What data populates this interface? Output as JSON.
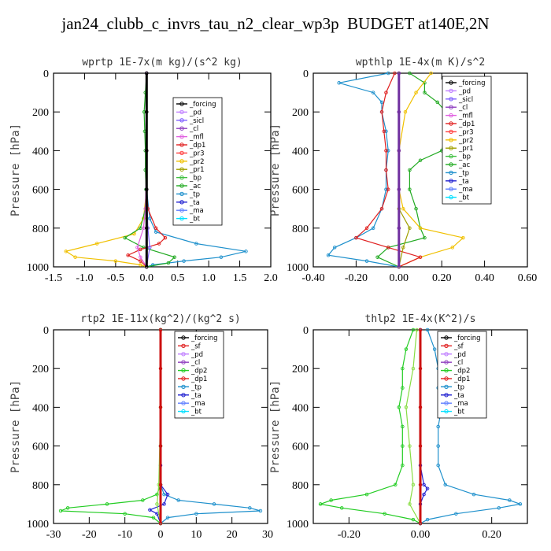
{
  "title": "jan24_clubb_c_invrs_tau_n2_clear_wp3p  BUDGET at140E,2N",
  "chart_data": [
    {
      "type": "line",
      "title": "wprtp  1E-7x(m kg)/(s^2 kg)",
      "ylabel": "Pressure [hPa]",
      "xlim": [
        -1.5,
        2.0
      ],
      "ylim": [
        1000,
        0
      ],
      "xticks": [
        "-1.5",
        "-1.0",
        "-0.5",
        "0.0",
        "0.5",
        "1.0",
        "1.5",
        "2.0"
      ],
      "xtick_values": [
        -1.5,
        -1.0,
        -0.5,
        0.0,
        0.5,
        1.0,
        1.5,
        2.0
      ],
      "yticks": [
        "0",
        "200",
        "400",
        "600",
        "800",
        "1000"
      ],
      "ytick_values": [
        0,
        200,
        400,
        600,
        800,
        1000
      ],
      "legend_position": "top-right",
      "legend": [
        "_forcing",
        "_pd",
        "_sicl",
        "_cl",
        "_mfl",
        "_dp1",
        "_pr3",
        "_pr2",
        "_pr1",
        "_bp",
        "_ac",
        "_tp",
        "_ta",
        "_ma",
        "_bt"
      ],
      "series": [
        {
          "name": "_tp",
          "color": "#1e90cc",
          "p": [
            0,
            200,
            400,
            600,
            750,
            820,
            880,
            920,
            950,
            970,
            990,
            1000
          ],
          "v": [
            0,
            0,
            0,
            0,
            0.05,
            0.15,
            0.8,
            1.6,
            1.2,
            0.6,
            0.1,
            0
          ]
        },
        {
          "name": "_pr2",
          "color": "#f0c000",
          "p": [
            0,
            200,
            400,
            600,
            750,
            830,
            880,
            920,
            950,
            970,
            990,
            1000
          ],
          "v": [
            0,
            0,
            0,
            0,
            -0.05,
            -0.2,
            -0.8,
            -1.3,
            -1.15,
            -0.5,
            -0.1,
            0
          ]
        },
        {
          "name": "_pd",
          "color": "#22aa22",
          "p": [
            0,
            100,
            200,
            300,
            400,
            500,
            600,
            700,
            800,
            850,
            900,
            950,
            980,
            1000
          ],
          "v": [
            0,
            -0.02,
            -0.04,
            -0.03,
            -0.02,
            -0.02,
            -0.01,
            -0.02,
            -0.1,
            -0.35,
            -0.05,
            0.45,
            0.35,
            0
          ]
        },
        {
          "name": "_dp1",
          "color": "#e02020",
          "p": [
            0,
            400,
            600,
            700,
            800,
            850,
            880,
            910,
            940,
            970,
            1000
          ],
          "v": [
            0,
            0,
            0,
            0.02,
            0.15,
            0.3,
            0.2,
            -0.1,
            -0.3,
            -0.1,
            0
          ]
        },
        {
          "name": "_mfl",
          "color": "#e060e0",
          "p": [
            0,
            400,
            700,
            800,
            900,
            950,
            1000
          ],
          "v": [
            0,
            0,
            -0.02,
            -0.05,
            -0.15,
            -0.1,
            0
          ]
        },
        {
          "name": "_sicl",
          "color": "#8060ff",
          "p": [
            0,
            600,
            800,
            900,
            1000
          ],
          "v": [
            0,
            0,
            0.02,
            0.05,
            0
          ]
        },
        {
          "name": "_forcing",
          "color": "#000000",
          "p": [
            0,
            200,
            400,
            600,
            800,
            1000
          ],
          "v": [
            0,
            0,
            0,
            0,
            0,
            0
          ]
        }
      ]
    },
    {
      "type": "line",
      "title": "wpthlp  1E-4x(m K)/s^2",
      "ylabel": "Pressure [hPa]",
      "xlim": [
        -0.4,
        0.6
      ],
      "ylim": [
        1000,
        0
      ],
      "xticks": [
        "-0.40",
        "-0.20",
        "0.00",
        "0.20",
        "0.40",
        "0.60"
      ],
      "xtick_values": [
        -0.4,
        -0.2,
        0.0,
        0.2,
        0.4,
        0.6
      ],
      "yticks": [
        "0",
        "200",
        "400",
        "600",
        "800",
        "1000"
      ],
      "ytick_values": [
        0,
        200,
        400,
        600,
        800,
        1000
      ],
      "legend_position": "top-right",
      "legend": [
        "_forcing",
        "_pd",
        "_sicl",
        "_cl",
        "_mfl",
        "_dp1",
        "_pr3",
        "_pr2",
        "_pr1",
        "_bp",
        "_ac",
        "_tp",
        "_ta",
        "_ma",
        "_bt"
      ],
      "series": [
        {
          "name": "_tp",
          "color": "#1e90cc",
          "p": [
            0,
            50,
            100,
            150,
            200,
            300,
            400,
            500,
            600,
            700,
            800,
            850,
            900,
            940,
            970,
            1000
          ],
          "v": [
            -0.05,
            -0.28,
            -0.12,
            -0.08,
            -0.08,
            -0.06,
            -0.05,
            -0.06,
            -0.06,
            -0.08,
            -0.12,
            -0.2,
            -0.3,
            -0.33,
            -0.15,
            0
          ]
        },
        {
          "name": "_pd",
          "color": "#22aa22",
          "p": [
            0,
            50,
            100,
            150,
            200,
            300,
            400,
            450,
            500,
            600,
            700,
            800,
            850,
            900,
            950,
            1000
          ],
          "v": [
            0.05,
            0.12,
            0.12,
            0.18,
            0.22,
            0.22,
            0.2,
            0.1,
            0.05,
            0.05,
            0.08,
            0.1,
            0.12,
            -0.05,
            -0.1,
            0
          ]
        },
        {
          "name": "_pr2",
          "color": "#f0c000",
          "p": [
            0,
            100,
            200,
            400,
            600,
            700,
            800,
            850,
            900,
            950,
            1000
          ],
          "v": [
            0.15,
            0.08,
            0.03,
            0,
            0,
            0.02,
            0.1,
            0.3,
            0.25,
            0.1,
            0
          ]
        },
        {
          "name": "_dp1",
          "color": "#e02020",
          "p": [
            0,
            100,
            200,
            300,
            400,
            500,
            600,
            700,
            800,
            850,
            900,
            950,
            1000
          ],
          "v": [
            -0.02,
            -0.06,
            -0.08,
            -0.07,
            -0.06,
            -0.06,
            -0.05,
            -0.08,
            -0.15,
            -0.2,
            -0.05,
            0.1,
            0
          ]
        },
        {
          "name": "_pr1",
          "color": "#a0a000",
          "p": [
            0,
            400,
            700,
            800,
            900,
            1000
          ],
          "v": [
            0,
            0,
            0,
            0.05,
            0.02,
            0
          ]
        },
        {
          "name": "_mfl",
          "color": "#e060e0",
          "p": [
            0,
            200,
            400,
            600,
            800,
            1000
          ],
          "v": [
            0,
            0,
            0,
            0,
            0,
            0
          ]
        },
        {
          "name": "_forcing",
          "color": "#7030a0",
          "p": [
            0,
            200,
            400,
            600,
            800,
            1000
          ],
          "v": [
            0,
            0,
            0,
            0,
            0,
            0
          ]
        }
      ]
    },
    {
      "type": "line",
      "title": "rtp2  1E-11x(kg^2)/(kg^2 s)",
      "ylabel": "Pressure [hPa]",
      "xlim": [
        -30,
        30
      ],
      "ylim": [
        1000,
        0
      ],
      "xticks": [
        "-30",
        "-20",
        "-10",
        "0",
        "10",
        "20",
        "30"
      ],
      "xtick_values": [
        -30,
        -20,
        -10,
        0,
        10,
        20,
        30
      ],
      "yticks": [
        "0",
        "200",
        "400",
        "600",
        "800",
        "1000"
      ],
      "ytick_values": [
        0,
        200,
        400,
        600,
        800,
        1000
      ],
      "legend_position": "top-right",
      "legend": [
        "_forcing",
        "_sf",
        "_pd",
        "_cl",
        "_dp2",
        "_dp1",
        "_tp",
        "_ta",
        "_ma",
        "_bt"
      ],
      "series": [
        {
          "name": "_tp",
          "color": "#1e90cc",
          "p": [
            0,
            600,
            800,
            850,
            880,
            900,
            920,
            935,
            950,
            970,
            1000
          ],
          "v": [
            0,
            0,
            0,
            1,
            5,
            15,
            25,
            28,
            10,
            2,
            0
          ]
        },
        {
          "name": "_dp2",
          "color": "#22cc22",
          "p": [
            0,
            600,
            800,
            850,
            880,
            900,
            920,
            935,
            950,
            970,
            1000
          ],
          "v": [
            0,
            0,
            0,
            -1,
            -5,
            -15,
            -26,
            -28,
            -10,
            -2,
            0
          ]
        },
        {
          "name": "_ta",
          "color": "#2020d0",
          "p": [
            0,
            700,
            800,
            850,
            900,
            930,
            950,
            1000
          ],
          "v": [
            0,
            0,
            0,
            2,
            1,
            -3,
            -1,
            0
          ]
        },
        {
          "name": "_dp1",
          "color": "#88dd44",
          "p": [
            0,
            400,
            800,
            900,
            1000
          ],
          "v": [
            0,
            0,
            -0.5,
            -1,
            0
          ]
        },
        {
          "name": "_forcing",
          "color": "#cc1010",
          "p": [
            0,
            200,
            400,
            600,
            800,
            1000
          ],
          "v": [
            0,
            0,
            0,
            0,
            0,
            0
          ]
        }
      ]
    },
    {
      "type": "line",
      "title": "thlp2  1E-4x(K^2)/s",
      "ylabel": "Pressure [hPa]",
      "xlim": [
        -0.3,
        0.3
      ],
      "ylim": [
        1000,
        0
      ],
      "xticks": [
        "-0.20",
        "0.00",
        "0.20"
      ],
      "xtick_values": [
        -0.2,
        0.0,
        0.2
      ],
      "yticks": [
        "0",
        "200",
        "400",
        "600",
        "800",
        "1000"
      ],
      "ytick_values": [
        0,
        200,
        400,
        600,
        800,
        1000
      ],
      "legend_position": "top-right",
      "legend": [
        "_forcing",
        "_sf",
        "_pd",
        "_cl",
        "_dp2",
        "_dp1",
        "_tp",
        "_ta",
        "_ma",
        "_bt"
      ],
      "series": [
        {
          "name": "_tp",
          "color": "#1e90cc",
          "p": [
            0,
            100,
            200,
            300,
            400,
            500,
            600,
            700,
            800,
            850,
            880,
            900,
            920,
            950,
            980,
            1000
          ],
          "v": [
            0.02,
            0.04,
            0.05,
            0.05,
            0.06,
            0.05,
            0.05,
            0.05,
            0.07,
            0.15,
            0.25,
            0.28,
            0.22,
            0.1,
            0.02,
            0
          ]
        },
        {
          "name": "_dp2",
          "color": "#22cc22",
          "p": [
            0,
            100,
            200,
            300,
            400,
            500,
            600,
            700,
            800,
            850,
            880,
            900,
            920,
            950,
            980,
            1000
          ],
          "v": [
            -0.02,
            -0.04,
            -0.05,
            -0.05,
            -0.06,
            -0.05,
            -0.05,
            -0.05,
            -0.07,
            -0.15,
            -0.25,
            -0.28,
            -0.22,
            -0.1,
            -0.02,
            0
          ]
        },
        {
          "name": "_dp1",
          "color": "#88dd44",
          "p": [
            0,
            200,
            400,
            600,
            800,
            900,
            1000
          ],
          "v": [
            -0.01,
            -0.02,
            -0.04,
            -0.03,
            -0.02,
            -0.03,
            0
          ]
        },
        {
          "name": "_ta",
          "color": "#2020d0",
          "p": [
            0,
            700,
            800,
            820,
            850,
            900,
            1000
          ],
          "v": [
            0,
            0,
            0.01,
            0.02,
            0.01,
            0,
            0
          ]
        },
        {
          "name": "_forcing",
          "color": "#cc1010",
          "p": [
            0,
            200,
            400,
            600,
            800,
            1000
          ],
          "v": [
            0,
            0,
            0,
            0,
            0,
            0
          ]
        }
      ]
    }
  ]
}
